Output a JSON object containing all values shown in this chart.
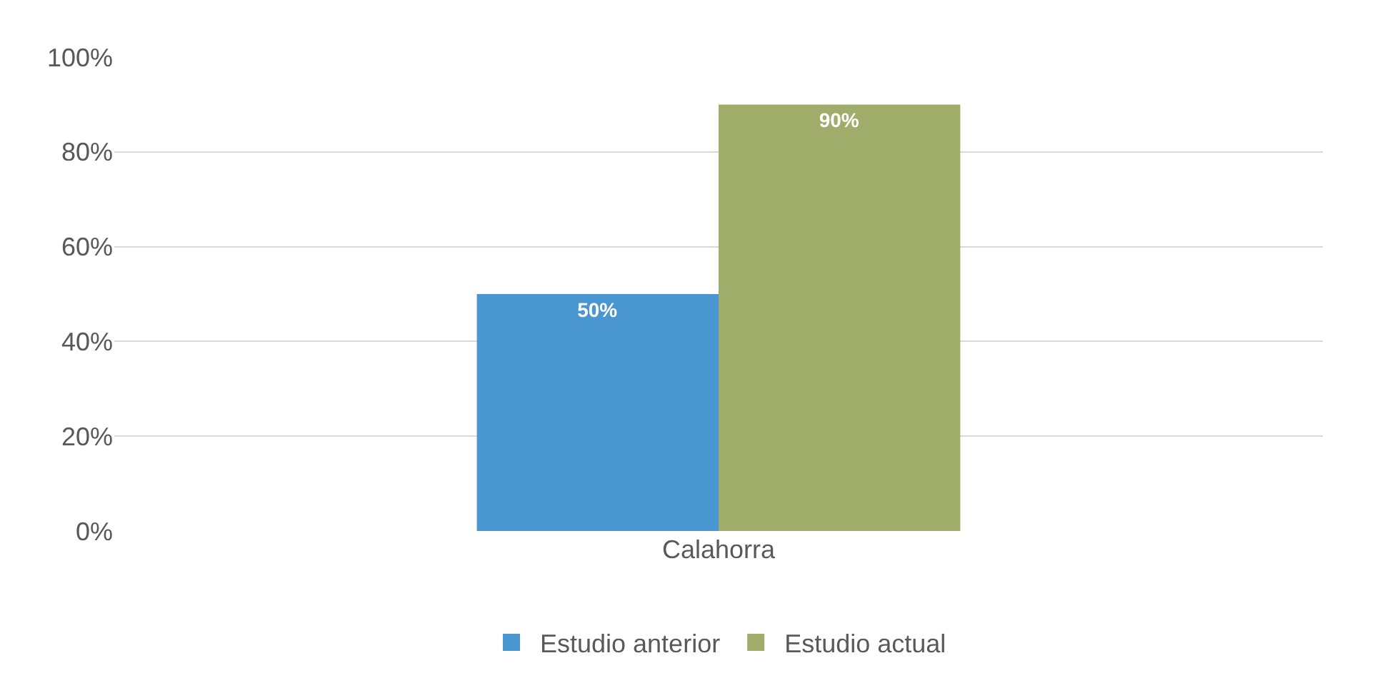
{
  "chart_data": {
    "type": "bar",
    "categories": [
      "Calahorra"
    ],
    "series": [
      {
        "name": "Estudio anterior",
        "color": "#4a96d1",
        "values": [
          50
        ],
        "value_labels": [
          "50%"
        ]
      },
      {
        "name": "Estudio actual",
        "color": "#a0ad6a",
        "values": [
          90
        ],
        "value_labels": [
          "90%"
        ]
      }
    ],
    "ylim": [
      0,
      100
    ],
    "yticks": [
      {
        "value": 0,
        "label": "0%"
      },
      {
        "value": 20,
        "label": "20%"
      },
      {
        "value": 40,
        "label": "40%"
      },
      {
        "value": 60,
        "label": "60%"
      },
      {
        "value": 80,
        "label": "80%"
      },
      {
        "value": 100,
        "label": "100%"
      }
    ],
    "grid": "y",
    "legend": "bottom"
  }
}
